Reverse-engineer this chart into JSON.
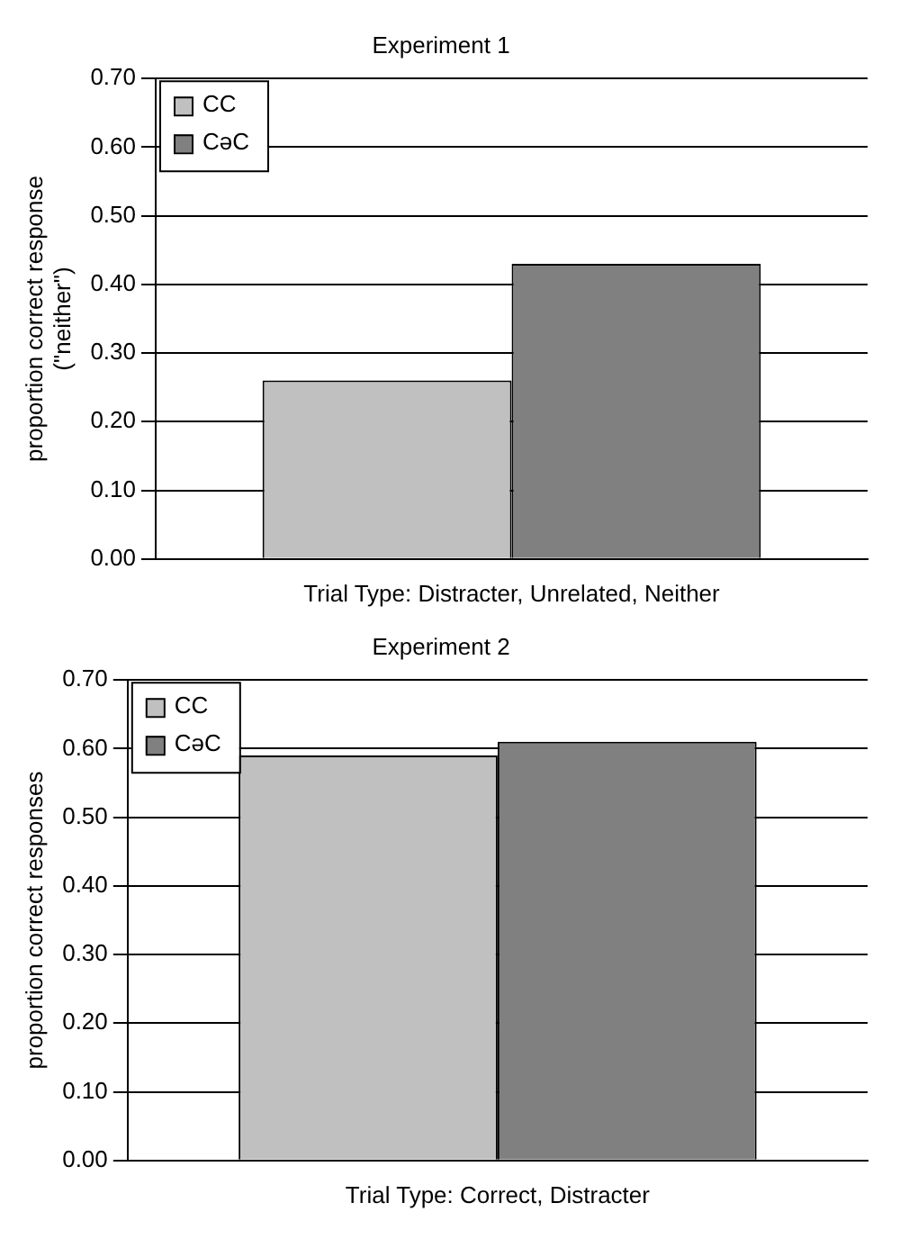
{
  "chart_data": [
    {
      "type": "bar",
      "title": "Experiment 1",
      "xlabel": "Trial Type: Distracter, Unrelated, Neither",
      "ylabel": [
        "proportion correct response",
        "(\"neither\")"
      ],
      "categories": [
        null
      ],
      "series": [
        {
          "name": "CC",
          "color": "#c0c0c0",
          "values": [
            0.26
          ]
        },
        {
          "name": "CəC",
          "color": "#808080",
          "values": [
            0.43
          ]
        }
      ],
      "ylim": [
        0,
        0.7
      ],
      "yticks": [
        {
          "value": 0,
          "label": "0.00"
        },
        {
          "value": 0.1,
          "label": "0.10"
        },
        {
          "value": 0.2,
          "label": "0.20"
        },
        {
          "value": 0.3,
          "label": "0.30"
        },
        {
          "value": 0.4,
          "label": "0.40"
        },
        {
          "value": 0.5,
          "label": "0.50"
        },
        {
          "value": 0.6,
          "label": "0.60"
        },
        {
          "value": 0.7,
          "label": "0.70"
        }
      ],
      "grid": "y",
      "legend": "top left"
    },
    {
      "type": "bar",
      "title": "Experiment 2",
      "xlabel": "Trial Type: Correct, Distracter",
      "ylabel": "proportion correct responses",
      "categories": [
        null
      ],
      "series": [
        {
          "name": "CC",
          "color": "#c0c0c0",
          "values": [
            0.59
          ]
        },
        {
          "name": "CəC",
          "color": "#808080",
          "values": [
            0.61
          ]
        }
      ],
      "ylim": [
        0,
        0.7
      ],
      "yticks": [
        {
          "value": 0,
          "label": "0.00"
        },
        {
          "value": 0.1,
          "label": "0.10"
        },
        {
          "value": 0.2,
          "label": "0.20"
        },
        {
          "value": 0.3,
          "label": "0.30"
        },
        {
          "value": 0.4,
          "label": "0.40"
        },
        {
          "value": 0.5,
          "label": "0.50"
        },
        {
          "value": 0.6,
          "label": "0.60"
        },
        {
          "value": 0.7,
          "label": "0.70"
        }
      ],
      "grid": "y",
      "legend": "top left"
    }
  ]
}
